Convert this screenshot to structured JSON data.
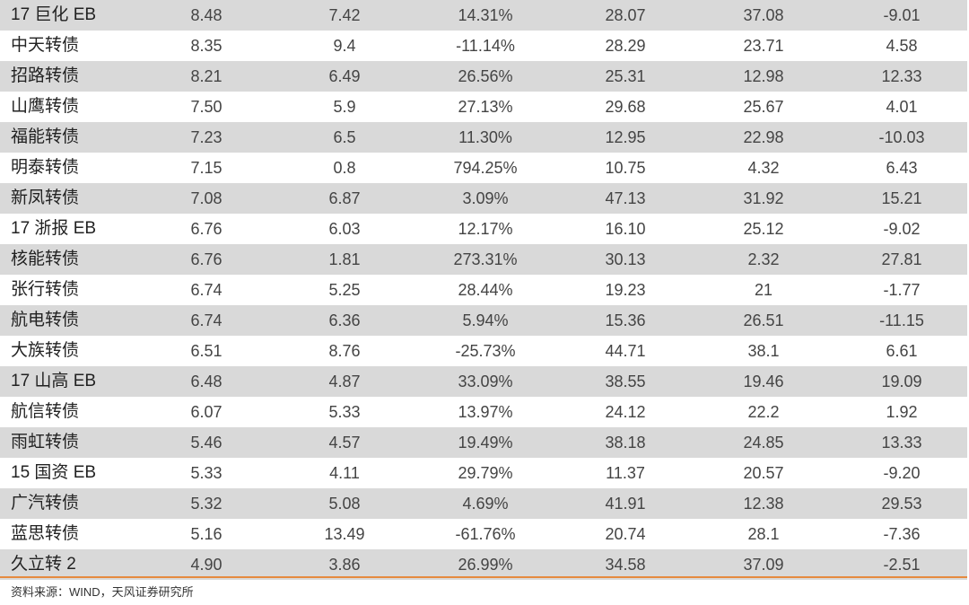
{
  "table": {
    "rows": [
      [
        "17 巨化 EB",
        "8.48",
        "7.42",
        "14.31%",
        "28.07",
        "37.08",
        "-9.01"
      ],
      [
        "中天转债",
        "8.35",
        "9.4",
        "-11.14%",
        "28.29",
        "23.71",
        "4.58"
      ],
      [
        "招路转债",
        "8.21",
        "6.49",
        "26.56%",
        "25.31",
        "12.98",
        "12.33"
      ],
      [
        "山鹰转债",
        "7.50",
        "5.9",
        "27.13%",
        "29.68",
        "25.67",
        "4.01"
      ],
      [
        "福能转债",
        "7.23",
        "6.5",
        "11.30%",
        "12.95",
        "22.98",
        "-10.03"
      ],
      [
        "明泰转债",
        "7.15",
        "0.8",
        "794.25%",
        "10.75",
        "4.32",
        "6.43"
      ],
      [
        "新凤转债",
        "7.08",
        "6.87",
        "3.09%",
        "47.13",
        "31.92",
        "15.21"
      ],
      [
        "17 浙报 EB",
        "6.76",
        "6.03",
        "12.17%",
        "16.10",
        "25.12",
        "-9.02"
      ],
      [
        "核能转债",
        "6.76",
        "1.81",
        "273.31%",
        "30.13",
        "2.32",
        "27.81"
      ],
      [
        "张行转债",
        "6.74",
        "5.25",
        "28.44%",
        "19.23",
        "21",
        "-1.77"
      ],
      [
        "航电转债",
        "6.74",
        "6.36",
        "5.94%",
        "15.36",
        "26.51",
        "-11.15"
      ],
      [
        "大族转债",
        "6.51",
        "8.76",
        "-25.73%",
        "44.71",
        "38.1",
        "6.61"
      ],
      [
        "17 山高 EB",
        "6.48",
        "4.87",
        "33.09%",
        "38.55",
        "19.46",
        "19.09"
      ],
      [
        "航信转债",
        "6.07",
        "5.33",
        "13.97%",
        "24.12",
        "22.2",
        "1.92"
      ],
      [
        "雨虹转债",
        "5.46",
        "4.57",
        "19.49%",
        "38.18",
        "24.85",
        "13.33"
      ],
      [
        "15 国资 EB",
        "5.33",
        "4.11",
        "29.79%",
        "11.37",
        "20.57",
        "-9.20"
      ],
      [
        "广汽转债",
        "5.32",
        "5.08",
        "4.69%",
        "41.91",
        "12.38",
        "29.53"
      ],
      [
        "蓝思转债",
        "5.16",
        "13.49",
        "-61.76%",
        "20.74",
        "28.1",
        "-7.36"
      ],
      [
        "久立转 2",
        "4.90",
        "3.86",
        "26.99%",
        "34.58",
        "37.09",
        "-2.51"
      ]
    ]
  },
  "footer": {
    "source": "资料来源：WIND，天风证券研究所"
  },
  "colors": {
    "shaded_row": "#d9d9d9",
    "rule": "#e58a3f"
  }
}
